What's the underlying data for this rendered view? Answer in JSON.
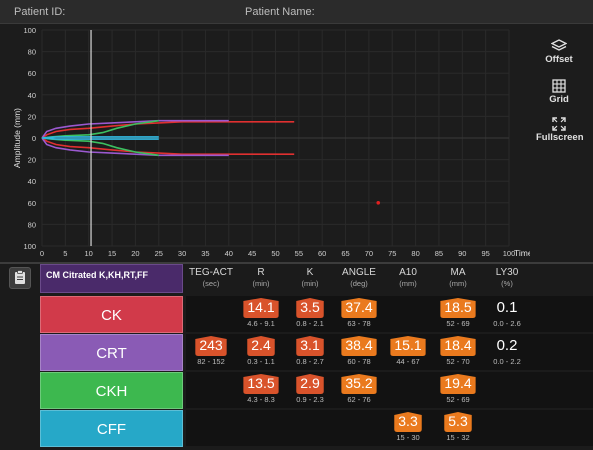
{
  "header": {
    "patient_id_label": "Patient ID:",
    "patient_name_label": "Patient Name:"
  },
  "toolbar": {
    "offset_label": "Offset",
    "grid_label": "Grid",
    "fullscreen_label": "Fullscreen"
  },
  "plot": {
    "ylabel": "Amplitude (mm)",
    "xlabel": "Time (min)",
    "x_ticks": [
      0,
      5,
      10,
      15,
      20,
      25,
      30,
      35,
      40,
      45,
      50,
      55,
      60,
      65,
      70,
      75,
      80,
      85,
      90,
      95,
      100
    ],
    "y_ticks": [
      100,
      80,
      60,
      40,
      20,
      0,
      -20,
      -40,
      -60,
      -80,
      -100
    ],
    "cursor_x": 10.5,
    "marker": {
      "x": 72,
      "y": -60,
      "color": "#e02020"
    }
  },
  "chart_data": {
    "type": "line",
    "xlim": [
      0,
      100
    ],
    "ylim": [
      -100,
      100
    ],
    "series": [
      {
        "color": "#e03030",
        "x": [
          0,
          1,
          3,
          6,
          10,
          15,
          20,
          25,
          30,
          40,
          54
        ],
        "y": [
          0,
          3,
          6,
          8,
          9,
          11,
          13,
          14,
          15,
          15,
          15
        ]
      },
      {
        "color": "#9b59d0",
        "x": [
          0,
          1,
          3,
          6,
          10,
          15,
          20,
          25,
          30,
          40
        ],
        "y": [
          0,
          6,
          9,
          11,
          13,
          14,
          15,
          16,
          16,
          16
        ]
      },
      {
        "color": "#3cc060",
        "x": [
          0,
          2,
          5,
          10,
          13,
          16,
          20,
          25
        ],
        "y": [
          0,
          1,
          2,
          3,
          5,
          9,
          13,
          16
        ]
      },
      {
        "color": "#30b8e0",
        "x": [
          0,
          3,
          8,
          15,
          25
        ],
        "y": [
          0,
          1,
          1,
          1,
          1
        ]
      }
    ],
    "lower_series": [
      {
        "color": "#e03030",
        "x": [
          0,
          1,
          3,
          6,
          10,
          15,
          20,
          25,
          30,
          40,
          54
        ],
        "y": [
          0,
          -3,
          -6,
          -8,
          -9,
          -11,
          -13,
          -14,
          -15,
          -15,
          -15
        ]
      },
      {
        "color": "#9b59d0",
        "x": [
          0,
          1,
          3,
          6,
          10,
          15,
          20,
          25,
          30,
          40
        ],
        "y": [
          0,
          -6,
          -9,
          -11,
          -13,
          -14,
          -15,
          -16,
          -16,
          -16
        ]
      },
      {
        "color": "#3cc060",
        "x": [
          0,
          2,
          5,
          10,
          13,
          16,
          20,
          25
        ],
        "y": [
          0,
          -1,
          -2,
          -3,
          -5,
          -9,
          -13,
          -16
        ]
      },
      {
        "color": "#30b8e0",
        "x": [
          0,
          3,
          8,
          15,
          25
        ],
        "y": [
          0,
          -1,
          -1,
          -1,
          -1
        ]
      }
    ]
  },
  "method": {
    "label": "CM Citrated K,KH,RT,FF"
  },
  "columns": [
    {
      "name": "TEG-ACT",
      "unit": "(sec)"
    },
    {
      "name": "R",
      "unit": "(min)"
    },
    {
      "name": "K",
      "unit": "(min)"
    },
    {
      "name": "ANGLE",
      "unit": "(deg)"
    },
    {
      "name": "A10",
      "unit": "(mm)"
    },
    {
      "name": "MA",
      "unit": "(mm)"
    },
    {
      "name": "LY30",
      "unit": "(%)"
    }
  ],
  "samples": [
    {
      "name": "CK",
      "color": "#d13a4a",
      "values": [
        null,
        {
          "v": "14.1",
          "r": "4.6 - 9.1",
          "s": "red"
        },
        {
          "v": "3.5",
          "r": "0.8 - 2.1",
          "s": "red"
        },
        {
          "v": "37.4",
          "r": "63 - 78",
          "s": "orange"
        },
        null,
        {
          "v": "18.5",
          "r": "52 - 69",
          "s": "orange"
        },
        {
          "v": "0.1",
          "r": "0.0 - 2.6",
          "s": "plain"
        }
      ]
    },
    {
      "name": "CRT",
      "color": "#8a5bb5",
      "values": [
        {
          "v": "243",
          "r": "82 - 152",
          "s": "red"
        },
        {
          "v": "2.4",
          "r": "0.3 - 1.1",
          "s": "red"
        },
        {
          "v": "3.1",
          "r": "0.8 - 2.7",
          "s": "red"
        },
        {
          "v": "38.4",
          "r": "60 - 78",
          "s": "orange"
        },
        {
          "v": "15.1",
          "r": "44 - 67",
          "s": "orange"
        },
        {
          "v": "18.4",
          "r": "52 - 70",
          "s": "orange"
        },
        {
          "v": "0.2",
          "r": "0.0 - 2.2",
          "s": "plain"
        }
      ]
    },
    {
      "name": "CKH",
      "color": "#3db84f",
      "values": [
        null,
        {
          "v": "13.5",
          "r": "4.3 - 8.3",
          "s": "red"
        },
        {
          "v": "2.9",
          "r": "0.9 - 2.3",
          "s": "red"
        },
        {
          "v": "35.2",
          "r": "62 - 76",
          "s": "orange"
        },
        null,
        {
          "v": "19.4",
          "r": "52 - 69",
          "s": "orange"
        },
        null
      ]
    },
    {
      "name": "CFF",
      "color": "#26a8c8",
      "values": [
        null,
        null,
        null,
        null,
        {
          "v": "3.3",
          "r": "15 - 30",
          "s": "orange"
        },
        {
          "v": "5.3",
          "r": "15 - 32",
          "s": "orange"
        },
        null
      ]
    }
  ]
}
